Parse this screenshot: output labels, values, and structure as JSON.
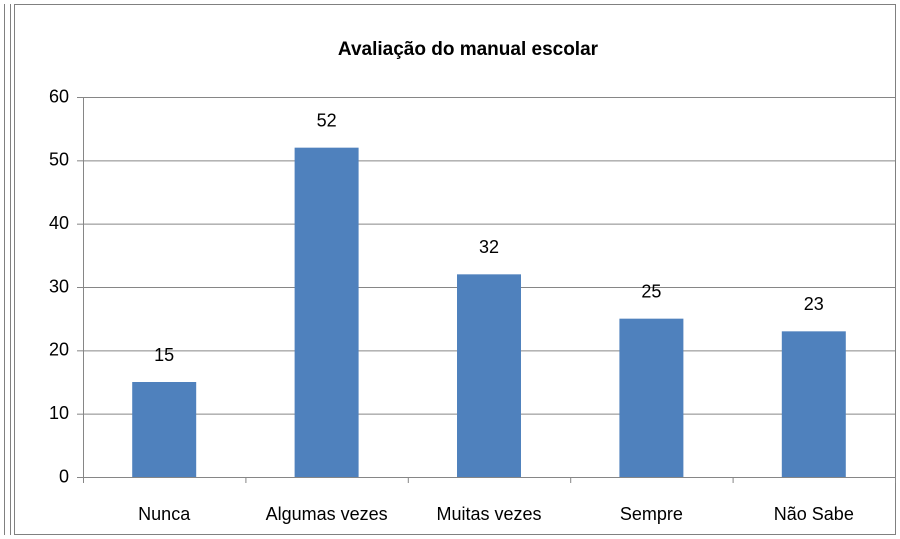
{
  "chart_data": {
    "type": "bar",
    "title": "Avaliação do manual escolar",
    "categories": [
      "Nunca",
      "Algumas vezes",
      "Muitas vezes",
      "Sempre",
      "Não Sabe"
    ],
    "values": [
      15,
      52,
      32,
      25,
      23
    ],
    "color": "#4f81bd",
    "ylim": [
      0,
      60
    ],
    "yticks": [
      0,
      10,
      20,
      30,
      40,
      50,
      60
    ],
    "grid": true
  }
}
